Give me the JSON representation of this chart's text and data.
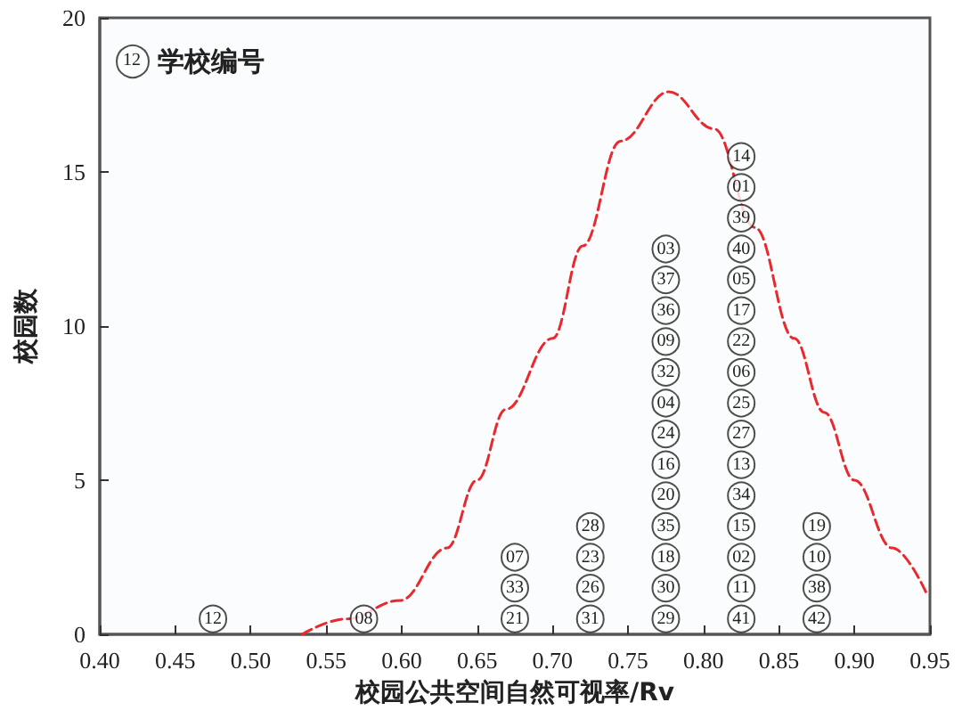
{
  "chart_data": {
    "type": "scatter",
    "xlabel": "校园公共空间自然可视率/Rv",
    "ylabel": "校园数",
    "xlim": [
      0.4,
      0.95
    ],
    "xticks": [
      {
        "value": 0.4,
        "label": "0.40"
      },
      {
        "value": 0.45,
        "label": "0.45"
      },
      {
        "value": 0.5,
        "label": "0.50"
      },
      {
        "value": 0.55,
        "label": "0.55"
      },
      {
        "value": 0.6,
        "label": "0.60"
      },
      {
        "value": 0.65,
        "label": "0.65"
      },
      {
        "value": 0.7,
        "label": "0.70"
      },
      {
        "value": 0.75,
        "label": "0.75"
      },
      {
        "value": 0.8,
        "label": "0.80"
      },
      {
        "value": 0.85,
        "label": "0.85"
      },
      {
        "value": 0.9,
        "label": "0.90"
      },
      {
        "value": 0.95,
        "label": "0.95"
      }
    ],
    "ylim": [
      0,
      20
    ],
    "yticks": [
      0,
      5,
      10,
      15,
      20
    ],
    "grid": false,
    "legend": "top left",
    "marker": "circle",
    "annotations": [
      "12",
      {
        "text": "12",
        "x": 0.475,
        "y": 0.5
      },
      {
        "text": "08",
        "x": 0.575,
        "y": 0.5
      },
      {
        "text": "21",
        "x": 0.675,
        "y": 0.5
      },
      {
        "text": "33",
        "x": 0.675,
        "y": 1.5
      },
      {
        "text": "07",
        "x": 0.675,
        "y": 2.5
      },
      {
        "text": "31",
        "x": 0.725,
        "y": 0.5
      },
      {
        "text": "26",
        "x": 0.725,
        "y": 1.5
      },
      {
        "text": "23",
        "x": 0.725,
        "y": 2.5
      },
      {
        "text": "28",
        "x": 0.725,
        "y": 3.5
      },
      {
        "text": "29",
        "x": 0.775,
        "y": 0.5
      },
      {
        "text": "30",
        "x": 0.775,
        "y": 1.5
      },
      {
        "text": "18",
        "x": 0.775,
        "y": 2.5
      },
      {
        "text": "35",
        "x": 0.775,
        "y": 3.5
      },
      {
        "text": "20",
        "x": 0.775,
        "y": 4.5
      },
      {
        "text": "16",
        "x": 0.775,
        "y": 5.5
      },
      {
        "text": "24",
        "x": 0.775,
        "y": 6.5
      },
      {
        "text": "04",
        "x": 0.775,
        "y": 7.5
      },
      {
        "text": "32",
        "x": 0.775,
        "y": 8.5
      },
      {
        "text": "09",
        "x": 0.775,
        "y": 9.5
      },
      {
        "text": "36",
        "x": 0.775,
        "y": 10.5
      },
      {
        "text": "37",
        "x": 0.775,
        "y": 11.5
      },
      {
        "text": "03",
        "x": 0.775,
        "y": 12.5
      },
      {
        "text": "41",
        "x": 0.825,
        "y": 0.5
      },
      {
        "text": "11",
        "x": 0.825,
        "y": 1.5
      },
      {
        "text": "02",
        "x": 0.825,
        "y": 2.5
      },
      {
        "text": "15",
        "x": 0.825,
        "y": 3.5
      },
      {
        "text": "34",
        "x": 0.825,
        "y": 4.5
      },
      {
        "text": "13",
        "x": 0.825,
        "y": 5.5
      },
      {
        "text": "27",
        "x": 0.825,
        "y": 6.5
      },
      {
        "text": "25",
        "x": 0.825,
        "y": 7.5
      },
      {
        "text": "06",
        "x": 0.825,
        "y": 8.5
      },
      {
        "text": "22",
        "x": 0.825,
        "y": 9.5
      },
      {
        "text": "17",
        "x": 0.825,
        "y": 10.5
      },
      {
        "text": "05",
        "x": 0.825,
        "y": 11.5
      },
      {
        "text": "40",
        "x": 0.825,
        "y": 12.5
      },
      {
        "text": "39",
        "x": 0.825,
        "y": 13.5
      },
      {
        "text": "01",
        "x": 0.825,
        "y": 14.5
      },
      {
        "text": "14",
        "x": 0.825,
        "y": 15.5
      },
      {
        "text": "42",
        "x": 0.875,
        "y": 0.5
      },
      {
        "text": "38",
        "x": 0.875,
        "y": 1.5
      },
      {
        "text": "10",
        "x": 0.875,
        "y": 2.5
      },
      {
        "text": "19",
        "x": 0.875,
        "y": 3.5
      }
    ],
    "series": [
      {
        "name": "学校编号",
        "color": "#222222",
        "x": [
          0.475,
          0.575,
          0.675,
          0.675,
          0.675,
          0.725,
          0.725,
          0.725,
          0.725,
          0.775,
          0.775,
          0.775,
          0.775,
          0.775,
          0.775,
          0.775,
          0.775,
          0.775,
          0.775,
          0.775,
          0.775,
          0.775,
          0.825,
          0.825,
          0.825,
          0.825,
          0.825,
          0.825,
          0.825,
          0.825,
          0.825,
          0.825,
          0.825,
          0.825,
          0.825,
          0.825,
          0.825,
          0.825,
          0.875,
          0.875,
          0.875,
          0.875
        ],
        "values": [
          0.5,
          0.5,
          0.5,
          1.5,
          2.5,
          0.5,
          1.5,
          2.5,
          3.5,
          0.5,
          1.5,
          2.5,
          3.5,
          4.5,
          5.5,
          6.5,
          7.5,
          8.5,
          9.5,
          10.5,
          11.5,
          12.5,
          0.5,
          1.5,
          2.5,
          3.5,
          4.5,
          5.5,
          6.5,
          7.5,
          8.5,
          9.5,
          10.5,
          11.5,
          12.5,
          13.5,
          14.5,
          15.5,
          0.5,
          1.5,
          2.5,
          3.5
        ]
      },
      {
        "type": "line",
        "color": "#e8292e",
        "line_style": "dashed",
        "marker": "none",
        "x": [
          0.534,
          0.563,
          0.599,
          0.63,
          0.65,
          0.669,
          0.7,
          0.72,
          0.745,
          0.777,
          0.807,
          0.834,
          0.86,
          0.88,
          0.9,
          0.925,
          0.948
        ],
        "values": [
          0,
          0.5,
          1.1,
          2.8,
          5.0,
          7.3,
          9.6,
          12.6,
          16.0,
          17.6,
          16.4,
          13.2,
          9.6,
          7.2,
          5.0,
          2.8,
          1.3
        ]
      }
    ]
  }
}
